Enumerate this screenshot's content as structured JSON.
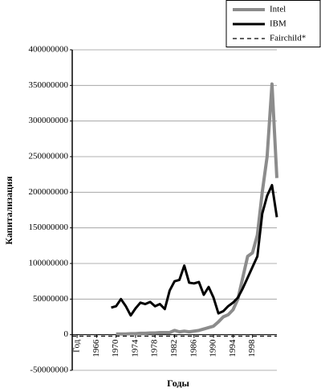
{
  "chart_data": {
    "type": "line",
    "x_label": "Годы",
    "y_label": "Капитализация",
    "x": [
      1961,
      1962,
      1963,
      1964,
      1965,
      1966,
      1967,
      1968,
      1969,
      1970,
      1971,
      1972,
      1973,
      1974,
      1975,
      1976,
      1977,
      1978,
      1979,
      1980,
      1981,
      1982,
      1983,
      1984,
      1985,
      1986,
      1987,
      1988,
      1989,
      1990,
      1991,
      1992,
      1993,
      1994,
      1995,
      1996,
      1997,
      1998,
      1999,
      2000,
      2001,
      2002,
      2003
    ],
    "series": [
      {
        "name": "Intel",
        "color": "#8c8c8c",
        "dash": false,
        "width": 4,
        "values": [
          null,
          null,
          null,
          null,
          null,
          null,
          null,
          null,
          null,
          1000000,
          1000000,
          1000000,
          1500000,
          1500000,
          2000000,
          2000000,
          2500000,
          2500000,
          3000000,
          3000000,
          3000000,
          6000000,
          4000000,
          5000000,
          4000000,
          5000000,
          6000000,
          8000000,
          10000000,
          12000000,
          18000000,
          25000000,
          28000000,
          35000000,
          50000000,
          80000000,
          110000000,
          115000000,
          140000000,
          200000000,
          250000000,
          352000000,
          220000000
        ]
      },
      {
        "name": "IBM",
        "color": "#000000",
        "dash": false,
        "width": 3,
        "values": [
          null,
          null,
          null,
          null,
          null,
          null,
          null,
          null,
          38000000,
          40000000,
          50000000,
          40000000,
          27000000,
          37000000,
          45000000,
          43000000,
          46000000,
          40000000,
          43000000,
          36000000,
          62000000,
          75000000,
          77000000,
          97000000,
          73000000,
          72000000,
          74000000,
          56000000,
          67000000,
          52000000,
          30000000,
          33000000,
          40000000,
          45000000,
          52000000,
          65000000,
          80000000,
          95000000,
          110000000,
          170000000,
          195000000,
          210000000,
          165000000
        ]
      },
      {
        "name": "Fairchild*",
        "color": "#000000",
        "dash": true,
        "width": 1.2,
        "values": [
          -2000000,
          -2000000,
          -2000000,
          -2000000,
          -2000000,
          -2000000,
          -2000000,
          -2000000,
          -2000000,
          -2000000,
          -2000000,
          -2000000,
          -2000000,
          -2000000,
          -2000000,
          -2000000,
          -2000000,
          -2000000,
          -2000000,
          -2000000,
          -2000000,
          -2000000,
          -2000000,
          -2000000,
          -2000000,
          -2000000,
          -2000000,
          -2000000,
          -2000000,
          -2000000,
          -2000000,
          -2000000,
          -2000000,
          -2000000,
          -2000000,
          -2000000,
          -2000000,
          -2000000,
          -2000000,
          -2000000,
          -2000000,
          -2000000,
          -2000000
        ]
      }
    ],
    "xlim": [
      1961,
      2003
    ],
    "xticks": [
      {
        "value": 1962,
        "label": "Год"
      },
      1966,
      1970,
      1974,
      1978,
      1982,
      1986,
      1990,
      1994,
      1998
    ],
    "ylim": [
      -50000000,
      400000000
    ],
    "yticks": [
      -50000000,
      0,
      50000000,
      100000000,
      150000000,
      200000000,
      250000000,
      300000000,
      350000000,
      400000000
    ],
    "grid": true,
    "legend": "top-right"
  }
}
